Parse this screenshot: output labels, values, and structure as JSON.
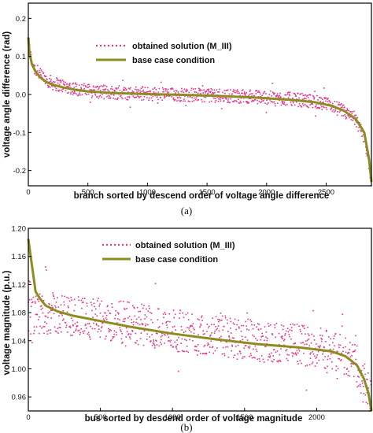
{
  "chart_data": [
    {
      "type": "scatter",
      "panel_label": "(a)",
      "xlabel": "branch sorted by descend order of voltage angle difference",
      "ylabel": "voltage angle difference (rad)",
      "xlim": [
        0,
        2880
      ],
      "ylim": [
        -0.24,
        0.24
      ],
      "xticks": [
        "0",
        "500",
        "1000",
        "1500",
        "2000",
        "2500"
      ],
      "xtick_values": [
        0,
        500,
        1000,
        1500,
        2000,
        2500
      ],
      "yticks": [
        "-0.2",
        "-0.1",
        "0.0",
        "0.1",
        "0.2"
      ],
      "ytick_values": [
        -0.2,
        -0.1,
        0.0,
        0.1,
        0.2
      ],
      "legend_position": "top-center",
      "grid": false,
      "series": [
        {
          "name": "obtained solution (M_III)",
          "color": "#e8338a",
          "style": "dotted-scatter",
          "x": [
            0,
            20,
            50,
            100,
            150,
            200,
            300,
            400,
            500,
            600,
            800,
            1000,
            1200,
            1500,
            1800,
            2000,
            2200,
            2400,
            2550,
            2650,
            2750,
            2820,
            2860,
            2880
          ],
          "y": [
            0.15,
            0.1,
            0.07,
            0.05,
            0.04,
            0.03,
            0.022,
            0.015,
            0.01,
            0.007,
            0.004,
            0.002,
            0.0,
            -0.002,
            -0.005,
            -0.008,
            -0.012,
            -0.018,
            -0.03,
            -0.045,
            -0.07,
            -0.11,
            -0.18,
            -0.24
          ],
          "spread": 0.018
        },
        {
          "name": "base case condition",
          "color": "#8c8c1f",
          "style": "line",
          "x": [
            0,
            10,
            30,
            60,
            100,
            150,
            200,
            300,
            400,
            500,
            700,
            1000,
            1300,
            1600,
            1900,
            2200,
            2400,
            2550,
            2650,
            2750,
            2820,
            2860,
            2880
          ],
          "y": [
            0.15,
            0.11,
            0.08,
            0.06,
            0.045,
            0.033,
            0.026,
            0.018,
            0.012,
            0.008,
            0.004,
            0.001,
            -0.001,
            -0.004,
            -0.008,
            -0.014,
            -0.02,
            -0.03,
            -0.043,
            -0.065,
            -0.1,
            -0.17,
            -0.23
          ]
        }
      ]
    },
    {
      "type": "scatter",
      "panel_label": "(b)",
      "xlabel": "bus sorted by descend order of voltage magnitude",
      "ylabel": "voltage magnitude (p.u.)",
      "xlim": [
        0,
        2380
      ],
      "ylim": [
        0.94,
        1.2
      ],
      "xticks": [
        "0",
        "500",
        "1000",
        "1500",
        "2000"
      ],
      "xtick_values": [
        0,
        500,
        1000,
        1500,
        2000
      ],
      "yticks": [
        "0.96",
        "1.00",
        "1.04",
        "1.08",
        "1.12",
        "1.16",
        "1.20"
      ],
      "ytick_values": [
        0.96,
        1.0,
        1.04,
        1.08,
        1.12,
        1.16,
        1.2
      ],
      "legend_position": "top-center",
      "grid": false,
      "series": [
        {
          "name": "obtained solution (M_III)",
          "color": "#e8338a",
          "style": "dotted-scatter",
          "x": [
            0,
            50,
            100,
            200,
            300,
            500,
            700,
            1000,
            1300,
            1500,
            1700,
            1900,
            2100,
            2200,
            2280,
            2340,
            2380
          ],
          "y": [
            1.07,
            1.075,
            1.08,
            1.078,
            1.075,
            1.07,
            1.065,
            1.055,
            1.048,
            1.042,
            1.038,
            1.034,
            1.028,
            1.02,
            1.0,
            0.975,
            0.95
          ],
          "spread": 0.03
        },
        {
          "name": "base case condition",
          "color": "#8c8c1f",
          "style": "line",
          "x": [
            0,
            10,
            30,
            50,
            80,
            120,
            200,
            300,
            500,
            700,
            1000,
            1300,
            1600,
            1900,
            2100,
            2200,
            2280,
            2330,
            2360,
            2380
          ],
          "y": [
            1.185,
            1.17,
            1.14,
            1.11,
            1.1,
            1.09,
            1.082,
            1.076,
            1.068,
            1.06,
            1.05,
            1.042,
            1.035,
            1.03,
            1.025,
            1.018,
            1.005,
            0.985,
            0.965,
            0.94
          ]
        }
      ]
    }
  ]
}
